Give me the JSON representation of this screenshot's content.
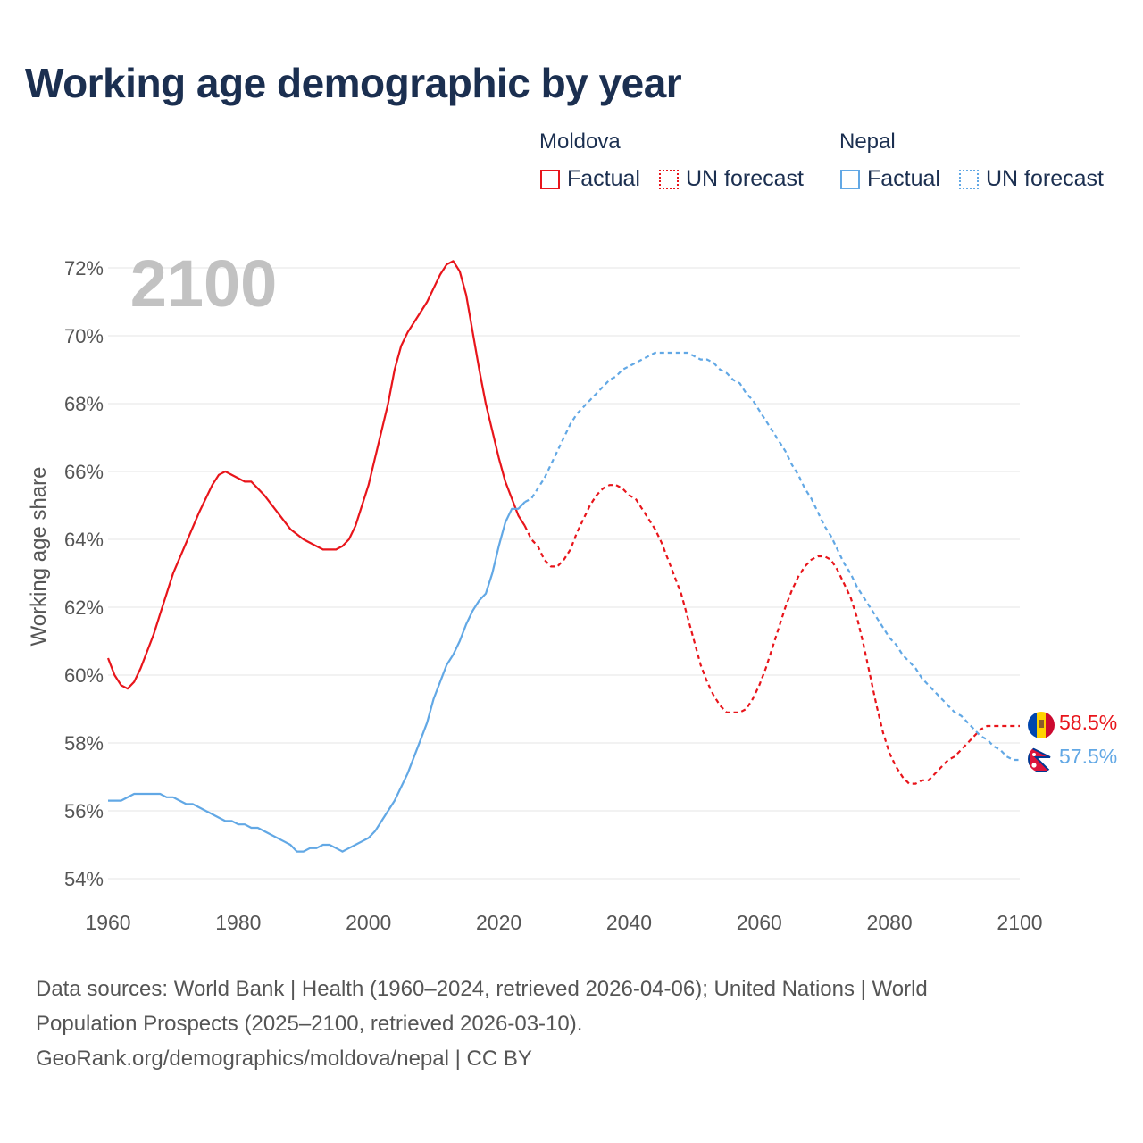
{
  "title": "Working age demographic by year",
  "year_label": "2100",
  "legend": {
    "moldova": {
      "name": "Moldova",
      "factual": "Factual",
      "forecast": "UN forecast",
      "color": "#e8151b"
    },
    "nepal": {
      "name": "Nepal",
      "factual": "Factual",
      "forecast": "UN forecast",
      "color": "#62a8e5"
    }
  },
  "sources": {
    "line1": "Data sources: World Bank | Health (1960–2024, retrieved 2026-04-06); United Nations | World",
    "line2": "Population Prospects (2025–2100, retrieved 2026-03-10).",
    "line3": "GeoRank.org/demographics/moldova/nepal | CC BY"
  },
  "chart_data": {
    "type": "line",
    "title": "Working age demographic by year",
    "xlabel": "",
    "ylabel": "Working age share",
    "xlim": [
      1960,
      2100
    ],
    "ylim": [
      54,
      72
    ],
    "x_ticks": [
      1960,
      1980,
      2000,
      2020,
      2040,
      2060,
      2080,
      2100
    ],
    "x_tick_labels": [
      "1960",
      "1980",
      "2000",
      "2020",
      "2040",
      "2060",
      "2080",
      "2100"
    ],
    "y_ticks": [
      54,
      56,
      58,
      60,
      62,
      64,
      66,
      68,
      70,
      72
    ],
    "y_tick_labels": [
      "54%",
      "56%",
      "58%",
      "60%",
      "62%",
      "64%",
      "66%",
      "68%",
      "70%",
      "72%"
    ],
    "grid": true,
    "series": [
      {
        "name": "Moldova",
        "color": "#e8151b",
        "end_label": "58.5%",
        "factual": [
          [
            1960,
            60.5
          ],
          [
            1961,
            60.0
          ],
          [
            1962,
            59.7
          ],
          [
            1963,
            59.6
          ],
          [
            1964,
            59.8
          ],
          [
            1965,
            60.2
          ],
          [
            1966,
            60.7
          ],
          [
            1967,
            61.2
          ],
          [
            1968,
            61.8
          ],
          [
            1970,
            63.0
          ],
          [
            1972,
            63.9
          ],
          [
            1974,
            64.8
          ],
          [
            1975,
            65.2
          ],
          [
            1976,
            65.6
          ],
          [
            1977,
            65.9
          ],
          [
            1978,
            66.0
          ],
          [
            1980,
            65.8
          ],
          [
            1981,
            65.7
          ],
          [
            1982,
            65.7
          ],
          [
            1984,
            65.3
          ],
          [
            1986,
            64.8
          ],
          [
            1988,
            64.3
          ],
          [
            1990,
            64.0
          ],
          [
            1992,
            63.8
          ],
          [
            1993,
            63.7
          ],
          [
            1995,
            63.7
          ],
          [
            1996,
            63.8
          ],
          [
            1997,
            64.0
          ],
          [
            1998,
            64.4
          ],
          [
            1999,
            65.0
          ],
          [
            2000,
            65.6
          ],
          [
            2001,
            66.4
          ],
          [
            2002,
            67.2
          ],
          [
            2003,
            68.0
          ],
          [
            2004,
            69.0
          ],
          [
            2005,
            69.7
          ],
          [
            2006,
            70.1
          ],
          [
            2007,
            70.4
          ],
          [
            2008,
            70.7
          ],
          [
            2009,
            71.0
          ],
          [
            2010,
            71.4
          ],
          [
            2011,
            71.8
          ],
          [
            2012,
            72.1
          ],
          [
            2013,
            72.2
          ],
          [
            2014,
            71.9
          ],
          [
            2015,
            71.2
          ],
          [
            2016,
            70.1
          ],
          [
            2017,
            69.0
          ],
          [
            2018,
            68.0
          ],
          [
            2019,
            67.2
          ],
          [
            2020,
            66.4
          ],
          [
            2021,
            65.7
          ],
          [
            2022,
            65.2
          ],
          [
            2023,
            64.7
          ],
          [
            2024,
            64.4
          ]
        ],
        "forecast": [
          [
            2024,
            64.4
          ],
          [
            2025,
            64.0
          ],
          [
            2026,
            63.8
          ],
          [
            2027,
            63.4
          ],
          [
            2028,
            63.2
          ],
          [
            2029,
            63.2
          ],
          [
            2030,
            63.4
          ],
          [
            2031,
            63.7
          ],
          [
            2032,
            64.2
          ],
          [
            2033,
            64.6
          ],
          [
            2034,
            65.0
          ],
          [
            2035,
            65.3
          ],
          [
            2036,
            65.5
          ],
          [
            2037,
            65.6
          ],
          [
            2038,
            65.6
          ],
          [
            2039,
            65.5
          ],
          [
            2040,
            65.3
          ],
          [
            2041,
            65.2
          ],
          [
            2042,
            64.9
          ],
          [
            2043,
            64.6
          ],
          [
            2044,
            64.3
          ],
          [
            2045,
            63.9
          ],
          [
            2046,
            63.4
          ],
          [
            2047,
            62.9
          ],
          [
            2048,
            62.4
          ],
          [
            2049,
            61.7
          ],
          [
            2050,
            61.0
          ],
          [
            2051,
            60.3
          ],
          [
            2052,
            59.8
          ],
          [
            2053,
            59.4
          ],
          [
            2054,
            59.1
          ],
          [
            2055,
            58.9
          ],
          [
            2056,
            58.9
          ],
          [
            2057,
            58.9
          ],
          [
            2058,
            59.0
          ],
          [
            2059,
            59.3
          ],
          [
            2060,
            59.7
          ],
          [
            2061,
            60.2
          ],
          [
            2062,
            60.8
          ],
          [
            2063,
            61.4
          ],
          [
            2064,
            62.0
          ],
          [
            2065,
            62.5
          ],
          [
            2066,
            62.9
          ],
          [
            2067,
            63.2
          ],
          [
            2068,
            63.4
          ],
          [
            2069,
            63.5
          ],
          [
            2070,
            63.5
          ],
          [
            2071,
            63.4
          ],
          [
            2072,
            63.1
          ],
          [
            2073,
            62.7
          ],
          [
            2074,
            62.3
          ],
          [
            2075,
            61.7
          ],
          [
            2076,
            60.9
          ],
          [
            2077,
            60.0
          ],
          [
            2078,
            59.1
          ],
          [
            2079,
            58.3
          ],
          [
            2080,
            57.7
          ],
          [
            2081,
            57.3
          ],
          [
            2082,
            57.0
          ],
          [
            2083,
            56.8
          ],
          [
            2084,
            56.8
          ],
          [
            2085,
            56.9
          ],
          [
            2086,
            56.9
          ],
          [
            2087,
            57.1
          ],
          [
            2088,
            57.3
          ],
          [
            2089,
            57.5
          ],
          [
            2090,
            57.6
          ],
          [
            2091,
            57.8
          ],
          [
            2092,
            58.0
          ],
          [
            2093,
            58.2
          ],
          [
            2094,
            58.4
          ],
          [
            2095,
            58.5
          ],
          [
            2096,
            58.5
          ],
          [
            2097,
            58.5
          ],
          [
            2098,
            58.5
          ],
          [
            2099,
            58.5
          ],
          [
            2100,
            58.5
          ]
        ]
      },
      {
        "name": "Nepal",
        "color": "#62a8e5",
        "end_label": "57.5%",
        "factual": [
          [
            1960,
            56.3
          ],
          [
            1962,
            56.3
          ],
          [
            1964,
            56.5
          ],
          [
            1966,
            56.5
          ],
          [
            1968,
            56.5
          ],
          [
            1969,
            56.4
          ],
          [
            1970,
            56.4
          ],
          [
            1971,
            56.3
          ],
          [
            1972,
            56.2
          ],
          [
            1973,
            56.2
          ],
          [
            1975,
            56.0
          ],
          [
            1977,
            55.8
          ],
          [
            1978,
            55.7
          ],
          [
            1979,
            55.7
          ],
          [
            1980,
            55.6
          ],
          [
            1981,
            55.6
          ],
          [
            1982,
            55.5
          ],
          [
            1983,
            55.5
          ],
          [
            1985,
            55.3
          ],
          [
            1987,
            55.1
          ],
          [
            1988,
            55.0
          ],
          [
            1989,
            54.8
          ],
          [
            1990,
            54.8
          ],
          [
            1991,
            54.9
          ],
          [
            1992,
            54.9
          ],
          [
            1993,
            55.0
          ],
          [
            1994,
            55.0
          ],
          [
            1995,
            54.9
          ],
          [
            1996,
            54.8
          ],
          [
            1997,
            54.9
          ],
          [
            1998,
            55.0
          ],
          [
            1999,
            55.1
          ],
          [
            2000,
            55.2
          ],
          [
            2001,
            55.4
          ],
          [
            2002,
            55.7
          ],
          [
            2003,
            56.0
          ],
          [
            2004,
            56.3
          ],
          [
            2005,
            56.7
          ],
          [
            2006,
            57.1
          ],
          [
            2007,
            57.6
          ],
          [
            2008,
            58.1
          ],
          [
            2009,
            58.6
          ],
          [
            2010,
            59.3
          ],
          [
            2011,
            59.8
          ],
          [
            2012,
            60.3
          ],
          [
            2013,
            60.6
          ],
          [
            2014,
            61.0
          ],
          [
            2015,
            61.5
          ],
          [
            2016,
            61.9
          ],
          [
            2017,
            62.2
          ],
          [
            2018,
            62.4
          ],
          [
            2019,
            63.0
          ],
          [
            2020,
            63.8
          ],
          [
            2021,
            64.5
          ],
          [
            2022,
            64.9
          ],
          [
            2023,
            64.9
          ],
          [
            2024,
            65.1
          ]
        ],
        "forecast": [
          [
            2024,
            65.1
          ],
          [
            2025,
            65.2
          ],
          [
            2026,
            65.5
          ],
          [
            2027,
            65.8
          ],
          [
            2028,
            66.2
          ],
          [
            2029,
            66.6
          ],
          [
            2030,
            67.0
          ],
          [
            2031,
            67.4
          ],
          [
            2032,
            67.7
          ],
          [
            2033,
            67.9
          ],
          [
            2034,
            68.1
          ],
          [
            2035,
            68.3
          ],
          [
            2036,
            68.5
          ],
          [
            2037,
            68.7
          ],
          [
            2038,
            68.8
          ],
          [
            2039,
            69.0
          ],
          [
            2040,
            69.1
          ],
          [
            2041,
            69.2
          ],
          [
            2042,
            69.3
          ],
          [
            2043,
            69.4
          ],
          [
            2044,
            69.5
          ],
          [
            2045,
            69.5
          ],
          [
            2046,
            69.5
          ],
          [
            2047,
            69.5
          ],
          [
            2048,
            69.5
          ],
          [
            2049,
            69.5
          ],
          [
            2050,
            69.4
          ],
          [
            2051,
            69.3
          ],
          [
            2052,
            69.3
          ],
          [
            2053,
            69.2
          ],
          [
            2054,
            69.0
          ],
          [
            2055,
            68.9
          ],
          [
            2056,
            68.7
          ],
          [
            2057,
            68.6
          ],
          [
            2058,
            68.3
          ],
          [
            2059,
            68.1
          ],
          [
            2060,
            67.8
          ],
          [
            2061,
            67.5
          ],
          [
            2062,
            67.2
          ],
          [
            2063,
            66.9
          ],
          [
            2064,
            66.6
          ],
          [
            2065,
            66.2
          ],
          [
            2066,
            65.9
          ],
          [
            2067,
            65.5
          ],
          [
            2068,
            65.2
          ],
          [
            2069,
            64.8
          ],
          [
            2070,
            64.4
          ],
          [
            2071,
            64.1
          ],
          [
            2072,
            63.7
          ],
          [
            2073,
            63.3
          ],
          [
            2074,
            63.0
          ],
          [
            2075,
            62.6
          ],
          [
            2076,
            62.3
          ],
          [
            2077,
            62.0
          ],
          [
            2078,
            61.7
          ],
          [
            2079,
            61.4
          ],
          [
            2080,
            61.1
          ],
          [
            2081,
            60.9
          ],
          [
            2082,
            60.6
          ],
          [
            2083,
            60.4
          ],
          [
            2084,
            60.2
          ],
          [
            2085,
            59.9
          ],
          [
            2086,
            59.7
          ],
          [
            2087,
            59.5
          ],
          [
            2088,
            59.3
          ],
          [
            2089,
            59.1
          ],
          [
            2090,
            58.9
          ],
          [
            2091,
            58.8
          ],
          [
            2092,
            58.6
          ],
          [
            2093,
            58.4
          ],
          [
            2094,
            58.2
          ],
          [
            2095,
            58.1
          ],
          [
            2096,
            57.9
          ],
          [
            2097,
            57.8
          ],
          [
            2098,
            57.6
          ],
          [
            2099,
            57.5
          ],
          [
            2100,
            57.5
          ]
        ]
      }
    ]
  }
}
